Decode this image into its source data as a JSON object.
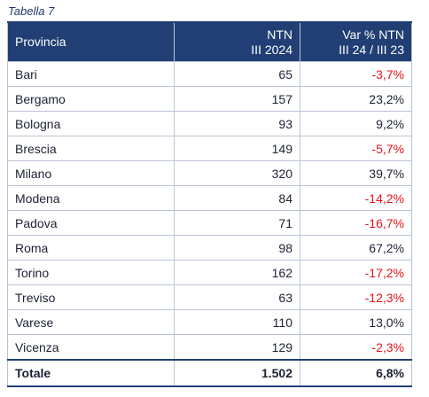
{
  "caption": "Tabella 7",
  "header": {
    "col1": "Provincia",
    "col2_line1": "NTN",
    "col2_line2": "III 2024",
    "col3_line1": "Var % NTN",
    "col3_line2": "III 24 / III 23"
  },
  "rows": [
    {
      "provincia": "Bari",
      "ntn": "65",
      "var": "-3,7%",
      "negative": true
    },
    {
      "provincia": "Bergamo",
      "ntn": "157",
      "var": "23,2%",
      "negative": false
    },
    {
      "provincia": "Bologna",
      "ntn": "93",
      "var": "9,2%",
      "negative": false
    },
    {
      "provincia": "Brescia",
      "ntn": "149",
      "var": "-5,7%",
      "negative": true
    },
    {
      "provincia": "Milano",
      "ntn": "320",
      "var": "39,7%",
      "negative": false
    },
    {
      "provincia": "Modena",
      "ntn": "84",
      "var": "-14,2%",
      "negative": true
    },
    {
      "provincia": "Padova",
      "ntn": "71",
      "var": "-16,7%",
      "negative": true
    },
    {
      "provincia": "Roma",
      "ntn": "98",
      "var": "67,2%",
      "negative": false
    },
    {
      "provincia": "Torino",
      "ntn": "162",
      "var": "-17,2%",
      "negative": true
    },
    {
      "provincia": "Treviso",
      "ntn": "63",
      "var": "-12,3%",
      "negative": true
    },
    {
      "provincia": "Varese",
      "ntn": "110",
      "var": "13,0%",
      "negative": false
    },
    {
      "provincia": "Vicenza",
      "ntn": "129",
      "var": "-2,3%",
      "negative": true
    }
  ],
  "total": {
    "label": "Totale",
    "ntn": "1.502",
    "var": "6,8%"
  },
  "colors": {
    "header_bg": "#213f74",
    "negative": "#e3141b",
    "border": "#b9c4d6"
  }
}
